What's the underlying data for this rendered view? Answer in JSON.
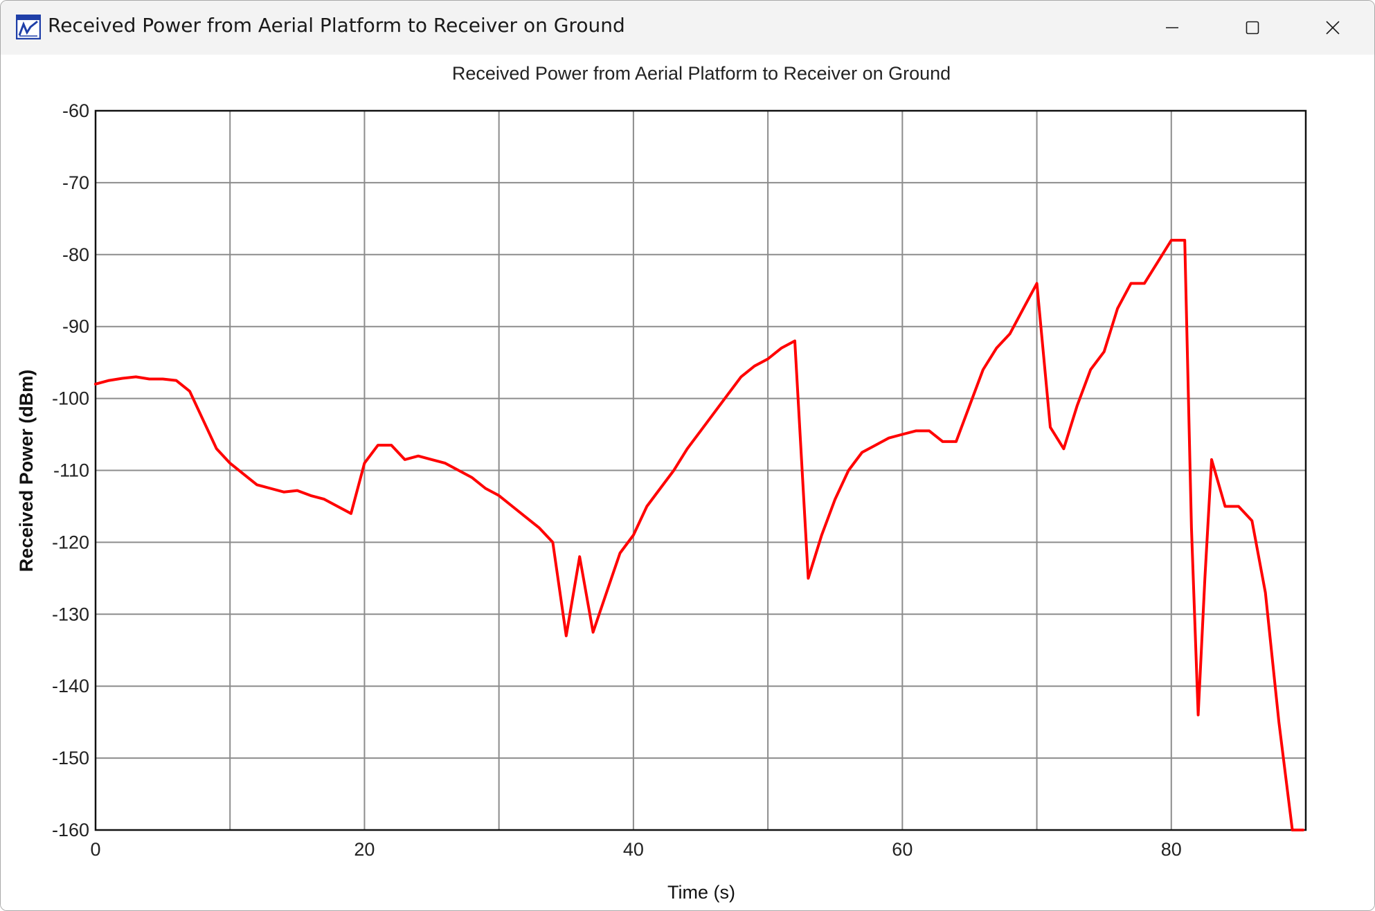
{
  "window": {
    "title": "Received Power from Aerial Platform to Receiver on Ground",
    "icon": "plot-app-icon",
    "controls": {
      "minimize_icon": "minimize-icon",
      "maximize_icon": "maximize-icon",
      "close_icon": "close-icon"
    }
  },
  "chart_data": {
    "type": "line",
    "title": "Received Power from Aerial Platform to Receiver on Ground",
    "xlabel": "Time (s)",
    "ylabel": "Received Power (dBm)",
    "xlim": [
      0,
      90
    ],
    "ylim": [
      -160,
      -60
    ],
    "xticks": [
      0,
      20,
      40,
      60,
      80
    ],
    "yticks": [
      -60,
      -70,
      -80,
      -90,
      -100,
      -110,
      -120,
      -130,
      -140,
      -150,
      -160
    ],
    "x_grid_step": 10,
    "grid": true,
    "legend": "none",
    "line_color": "#ff0000",
    "series": [
      {
        "x": [
          0,
          1,
          2,
          3,
          4,
          5,
          6,
          7,
          8,
          9,
          10,
          11,
          12,
          13,
          14,
          15,
          16,
          17,
          18,
          19,
          20,
          21,
          22,
          23,
          24,
          25,
          26,
          27,
          28,
          29,
          30,
          31,
          32,
          33,
          34,
          35,
          36,
          37,
          38,
          39,
          40,
          41,
          42,
          43,
          44,
          45,
          46,
          47,
          48,
          49,
          50,
          51,
          52,
          53,
          54,
          55,
          56,
          57,
          58,
          59,
          60,
          61,
          62,
          63,
          64,
          65,
          66,
          67,
          68,
          69,
          70,
          71,
          72,
          73,
          74,
          75,
          76,
          77,
          78,
          79,
          80,
          81,
          81.5,
          82,
          82.5,
          83,
          84,
          85,
          86,
          87,
          88,
          89,
          89.8
        ],
        "y": [
          -98,
          -97.5,
          -97.2,
          -97,
          -97.3,
          -97.3,
          -97.5,
          -99,
          -103,
          -107,
          -109,
          -110.5,
          -112,
          -112.5,
          -113,
          -112.8,
          -113.5,
          -114,
          -115,
          -116,
          -109,
          -106.5,
          -106.5,
          -108.5,
          -108,
          -108.5,
          -109,
          -110,
          -111,
          -112.5,
          -113.5,
          -115,
          -116.5,
          -118,
          -120,
          -133,
          -122,
          -132.5,
          -127,
          -121.5,
          -119,
          -115,
          -112.5,
          -110,
          -107,
          -104.5,
          -102,
          -99.5,
          -97,
          -95.5,
          -94.5,
          -93,
          -92,
          -125,
          -119,
          -114,
          -110,
          -107.5,
          -106.5,
          -105.5,
          -105,
          -104.5,
          -104.5,
          -106,
          -106,
          -101,
          -96,
          -93,
          -91,
          -87.5,
          -84,
          -104,
          -107,
          -101,
          -96,
          -93.5,
          -87.5,
          -84,
          -84,
          -81,
          -78,
          -78,
          -118,
          -144,
          -125,
          -108.5,
          -115,
          -115,
          -117,
          -127,
          -145,
          -160,
          -160
        ]
      }
    ]
  }
}
